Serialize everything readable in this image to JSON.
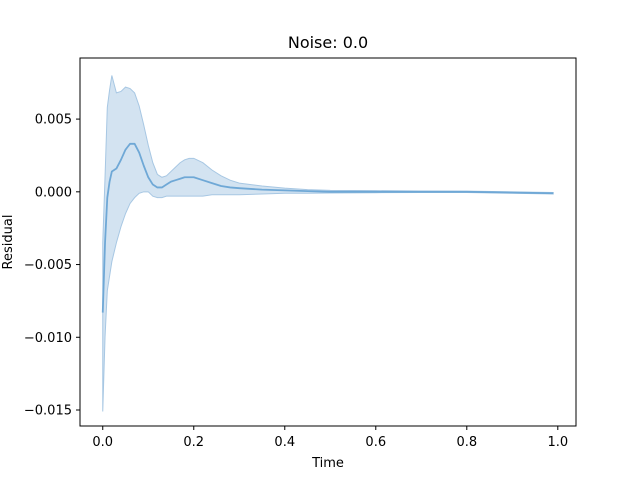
{
  "chart_data": {
    "type": "line",
    "title": "Noise: 0.0",
    "xlabel": "Time",
    "ylabel": "Residual",
    "xlim": [
      -0.05,
      1.04
    ],
    "ylim": [
      -0.0161,
      0.0092
    ],
    "xticks": [
      0.0,
      0.2,
      0.4,
      0.6,
      0.8,
      1.0
    ],
    "xtick_labels": [
      "0.0",
      "0.2",
      "0.4",
      "0.6",
      "0.8",
      "1.0"
    ],
    "yticks": [
      -0.015,
      -0.01,
      -0.005,
      0.0,
      0.005
    ],
    "ytick_labels": [
      "−0.015",
      "−0.010",
      "−0.005",
      "0.000",
      "0.005"
    ],
    "grid": false,
    "legend": null,
    "colors": {
      "line": "#6fa8d6",
      "band": "#a7c7e3"
    },
    "series": [
      {
        "x": [
          0.0,
          0.005,
          0.01,
          0.015,
          0.02,
          0.03,
          0.04,
          0.05,
          0.06,
          0.07,
          0.08,
          0.09,
          0.1,
          0.11,
          0.12,
          0.13,
          0.14,
          0.15,
          0.16,
          0.17,
          0.18,
          0.19,
          0.2,
          0.22,
          0.24,
          0.26,
          0.28,
          0.3,
          0.35,
          0.4,
          0.45,
          0.5,
          0.6,
          0.7,
          0.8,
          0.9,
          0.99
        ],
        "y": [
          -0.0083,
          -0.0035,
          -0.0004,
          0.0007,
          0.0014,
          0.0016,
          0.0022,
          0.0029,
          0.0033,
          0.0033,
          0.0027,
          0.0018,
          0.001,
          0.0005,
          0.0003,
          0.0003,
          0.0005,
          0.0007,
          0.0008,
          0.0009,
          0.001,
          0.001,
          0.001,
          0.0008,
          0.0006,
          0.0004,
          0.0003,
          0.00025,
          0.00015,
          0.0001,
          5e-05,
          0.0,
          0.0,
          0.0,
          0.0,
          -5e-05,
          -0.0001
        ],
        "y_lower": [
          -0.0151,
          -0.01,
          -0.0068,
          -0.0058,
          -0.0048,
          -0.0035,
          -0.0024,
          -0.0015,
          -0.0008,
          -0.0004,
          -0.0001,
          0.0,
          0.0,
          -0.0003,
          -0.0004,
          -0.0004,
          -0.0003,
          -0.0003,
          -0.0003,
          -0.0003,
          -0.0003,
          -0.0003,
          -0.0003,
          -0.0003,
          -0.0002,
          -0.0002,
          -0.0002,
          -0.0002,
          -0.00015,
          -0.0001,
          -0.0001,
          -8e-05,
          -6e-05,
          -5e-05,
          -5e-05,
          -0.0001,
          -0.00015
        ],
        "y_upper": [
          -0.0035,
          0.001,
          0.0058,
          0.007,
          0.008,
          0.0068,
          0.0069,
          0.0072,
          0.0071,
          0.0068,
          0.0059,
          0.0046,
          0.0032,
          0.002,
          0.0012,
          0.001,
          0.0011,
          0.0014,
          0.0017,
          0.002,
          0.0022,
          0.0023,
          0.0023,
          0.002,
          0.0015,
          0.0011,
          0.0008,
          0.0006,
          0.0004,
          0.00025,
          0.00015,
          0.0001,
          8e-05,
          6e-05,
          5e-05,
          0.0,
          -5e-05
        ]
      }
    ]
  }
}
